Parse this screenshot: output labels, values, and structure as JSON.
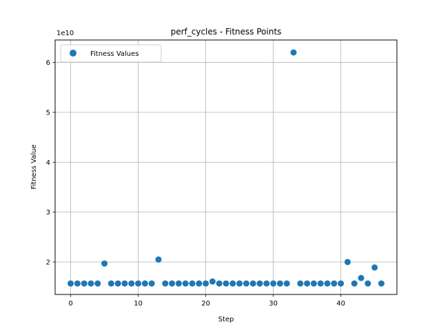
{
  "chart_data": {
    "type": "scatter",
    "title": "perf_cycles - Fitness Points",
    "xlabel": "Step",
    "ylabel": "Fitness Value",
    "y_scale_label": "1e10",
    "xlim": [
      -2.3,
      48.3
    ],
    "ylim": [
      13500000000,
      64500000000
    ],
    "x_ticks": [
      0,
      10,
      20,
      30,
      40
    ],
    "x_tick_labels": [
      "0",
      "10",
      "20",
      "30",
      "40"
    ],
    "y_ticks": [
      20000000000,
      30000000000,
      40000000000,
      50000000000,
      60000000000
    ],
    "y_tick_labels": [
      "2",
      "3",
      "4",
      "5",
      "6"
    ],
    "grid": true,
    "legend_position": "upper-left",
    "series": [
      {
        "name": "Fitness Values",
        "color": "#1f77b4",
        "x": [
          0,
          1,
          2,
          3,
          4,
          5,
          6,
          7,
          8,
          9,
          10,
          11,
          12,
          13,
          14,
          15,
          16,
          17,
          18,
          19,
          20,
          21,
          22,
          23,
          24,
          25,
          26,
          27,
          28,
          29,
          30,
          31,
          32,
          33,
          34,
          35,
          36,
          37,
          38,
          39,
          40,
          41,
          42,
          43,
          44,
          45,
          46
        ],
        "y": [
          15700000000,
          15700000000,
          15700000000,
          15700000000,
          15700000000,
          19700000000,
          15700000000,
          15700000000,
          15700000000,
          15700000000,
          15700000000,
          15700000000,
          15700000000,
          20500000000,
          15700000000,
          15700000000,
          15700000000,
          15700000000,
          15700000000,
          15700000000,
          15700000000,
          16100000000,
          15700000000,
          15700000000,
          15700000000,
          15700000000,
          15700000000,
          15700000000,
          15700000000,
          15700000000,
          15700000000,
          15700000000,
          15700000000,
          62000000000,
          15700000000,
          15700000000,
          15700000000,
          15700000000,
          15700000000,
          15700000000,
          15700000000,
          20000000000,
          15700000000,
          16800000000,
          15700000000,
          18900000000,
          15700000000
        ]
      }
    ]
  }
}
